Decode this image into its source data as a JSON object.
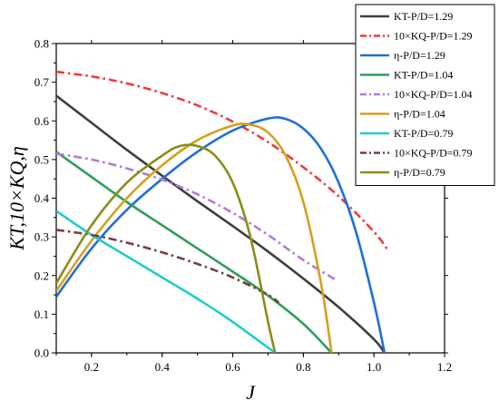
{
  "chart_data": {
    "type": "line",
    "xlabel": "J",
    "ylabel": "KT,10×KQ,η",
    "xlim": [
      0.1,
      1.2
    ],
    "ylim": [
      0.0,
      0.8
    ],
    "x_ticks": [
      "0.2",
      "0.4",
      "0.6",
      "0.8",
      "1.0",
      "1.2"
    ],
    "y_ticks": [
      "0.0",
      "0.1",
      "0.2",
      "0.3",
      "0.4",
      "0.5",
      "0.6",
      "0.7",
      "0.8"
    ],
    "grid": false,
    "legend_position": "top-right",
    "series": [
      {
        "name": "KT-P/D=1.29",
        "color": "#3f3f3f",
        "style": "solid",
        "x": [
          0.1,
          0.2,
          0.3,
          0.4,
          0.5,
          0.6,
          0.7,
          0.8,
          0.9,
          1.0,
          1.03
        ],
        "y": [
          0.665,
          0.595,
          0.525,
          0.458,
          0.392,
          0.328,
          0.262,
          0.192,
          0.118,
          0.035,
          0.0
        ]
      },
      {
        "name": "10×KQ-P/D=1.29",
        "color": "#ee3b3b",
        "style": "dashdot",
        "x": [
          0.1,
          0.2,
          0.3,
          0.4,
          0.5,
          0.6,
          0.7,
          0.8,
          0.9,
          1.0,
          1.04
        ],
        "y": [
          0.727,
          0.715,
          0.697,
          0.672,
          0.64,
          0.598,
          0.545,
          0.48,
          0.405,
          0.313,
          0.265
        ]
      },
      {
        "name": "η-P/D=1.29",
        "color": "#1f6fd6",
        "style": "solid",
        "x": [
          0.1,
          0.2,
          0.3,
          0.4,
          0.5,
          0.6,
          0.7,
          0.75,
          0.8,
          0.85,
          0.9,
          0.95,
          1.0,
          1.03
        ],
        "y": [
          0.145,
          0.27,
          0.37,
          0.45,
          0.52,
          0.575,
          0.606,
          0.605,
          0.58,
          0.528,
          0.44,
          0.31,
          0.13,
          0.0
        ]
      },
      {
        "name": "KT-P/D=1.04",
        "color": "#2e9e5b",
        "style": "solid",
        "x": [
          0.1,
          0.2,
          0.3,
          0.4,
          0.5,
          0.6,
          0.7,
          0.8,
          0.88
        ],
        "y": [
          0.52,
          0.455,
          0.39,
          0.33,
          0.27,
          0.21,
          0.148,
          0.075,
          0.0
        ]
      },
      {
        "name": "10×KQ-P/D=1.04",
        "color": "#b07ad9",
        "style": "dashdot",
        "x": [
          0.1,
          0.2,
          0.3,
          0.4,
          0.5,
          0.6,
          0.7,
          0.8,
          0.89
        ],
        "y": [
          0.515,
          0.5,
          0.477,
          0.448,
          0.41,
          0.362,
          0.305,
          0.24,
          0.19
        ]
      },
      {
        "name": "η-P/D=1.04",
        "color": "#d4a020",
        "style": "solid",
        "x": [
          0.1,
          0.2,
          0.3,
          0.4,
          0.5,
          0.6,
          0.65,
          0.7,
          0.75,
          0.8,
          0.85,
          0.88
        ],
        "y": [
          0.16,
          0.29,
          0.4,
          0.485,
          0.55,
          0.588,
          0.59,
          0.57,
          0.51,
          0.39,
          0.18,
          0.0
        ]
      },
      {
        "name": "KT-P/D=0.79",
        "color": "#1fcccc",
        "style": "solid",
        "x": [
          0.1,
          0.2,
          0.3,
          0.4,
          0.5,
          0.6,
          0.72
        ],
        "y": [
          0.367,
          0.305,
          0.25,
          0.195,
          0.14,
          0.08,
          0.0
        ]
      },
      {
        "name": "10×KQ-P/D=0.79",
        "color": "#7a3b3b",
        "style": "dashdot",
        "x": [
          0.1,
          0.2,
          0.3,
          0.4,
          0.5,
          0.6,
          0.7,
          0.73
        ],
        "y": [
          0.318,
          0.305,
          0.285,
          0.26,
          0.23,
          0.195,
          0.15,
          0.13
        ]
      },
      {
        "name": "η-P/D=0.79",
        "color": "#8c8c1a",
        "style": "solid",
        "x": [
          0.1,
          0.2,
          0.3,
          0.4,
          0.45,
          0.5,
          0.55,
          0.6,
          0.65,
          0.7,
          0.72
        ],
        "y": [
          0.18,
          0.33,
          0.44,
          0.51,
          0.535,
          0.535,
          0.51,
          0.44,
          0.3,
          0.08,
          0.0
        ]
      }
    ]
  }
}
